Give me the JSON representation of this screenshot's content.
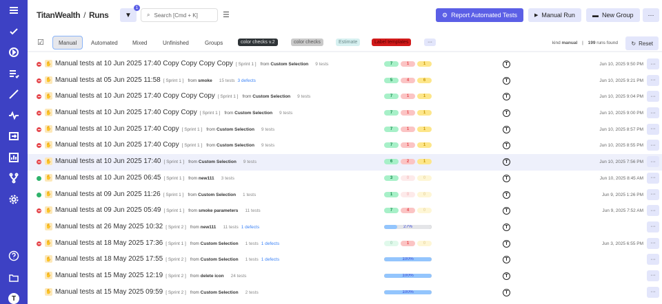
{
  "colors": {
    "sidebar": "#3d41c4",
    "primary": "#5b5fe6",
    "failed": "#e5484d",
    "passed": "#2fb36b",
    "skipped": "#fde68a"
  },
  "sidebar": {
    "items": [
      "menu-icon",
      "check-icon",
      "play-icon",
      "list-icon",
      "trend-icon",
      "pulse-icon",
      "import-icon",
      "chart-icon",
      "branch-icon",
      "gear-icon"
    ],
    "bottom": [
      "help-icon",
      "folder-icon",
      "avatar"
    ],
    "avatar": "T"
  },
  "header": {
    "project": "TitanWealth",
    "separator": "/",
    "page": "Runs",
    "filter_count": "1",
    "search_placeholder": "Search [Cmd + K]",
    "report_button": "Report Automated Tests",
    "manual_run_button": "Manual Run",
    "new_group_button": "New Group",
    "more": "···"
  },
  "tabs": [
    {
      "label": "Manual",
      "active": true
    },
    {
      "label": "Automated"
    },
    {
      "label": "Mixed"
    },
    {
      "label": "Unfinished"
    },
    {
      "label": "Groups"
    }
  ],
  "labels": [
    {
      "text": "color checks v.2",
      "bg": "#2f3437",
      "fg": "#e5e5e5"
    },
    {
      "text": "color checks",
      "bg": "#c9c9c9",
      "fg": "#555"
    },
    {
      "text": "Estimate",
      "bg": "#d6f0f0",
      "fg": "#6b8a8a"
    },
    {
      "text": "Label templates",
      "bg": "#d11a1a",
      "fg": "#5a0000"
    }
  ],
  "labels_more": "···",
  "filter_summary": {
    "kind_label": "kind",
    "kind_value": "manual",
    "separator": "|",
    "count": "199",
    "count_label": "runs found",
    "reset": "Reset"
  },
  "runs": [
    {
      "status": "fail",
      "title": "Manual tests at 10 Jun 2025 17:40 Copy Copy Copy Copy",
      "sprint": "[ Sprint 1 ]",
      "from": "Custom Selection",
      "tests": "9 tests",
      "defects": "",
      "passed": "7",
      "failed": "1",
      "skipped": "1",
      "date": "Jun 10, 2025 9:50 PM"
    },
    {
      "status": "fail",
      "title": "Manual tests at 05 Jun 2025 11:58",
      "sprint": "[ Sprint 1 ]",
      "from": "smoke",
      "tests": "15 tests",
      "defects": "3 defects",
      "passed": "5",
      "failed": "4",
      "skipped": "6",
      "date": "Jun 10, 2025 9:21 PM"
    },
    {
      "status": "fail",
      "title": "Manual tests at 10 Jun 2025 17:40 Copy Copy Copy",
      "sprint": "[ Sprint 1 ]",
      "from": "Custom Selection",
      "tests": "9 tests",
      "defects": "",
      "passed": "7",
      "failed": "1",
      "skipped": "1",
      "date": "Jun 10, 2025 9:04 PM"
    },
    {
      "status": "fail",
      "title": "Manual tests at 10 Jun 2025 17:40 Copy Copy",
      "sprint": "[ Sprint 1 ]",
      "from": "Custom Selection",
      "tests": "9 tests",
      "defects": "",
      "passed": "7",
      "failed": "1",
      "skipped": "1",
      "date": "Jun 10, 2025 9:00 PM"
    },
    {
      "status": "fail",
      "title": "Manual tests at 10 Jun 2025 17:40 Copy",
      "sprint": "[ Sprint 1 ]",
      "from": "Custom Selection",
      "tests": "9 tests",
      "defects": "",
      "passed": "7",
      "failed": "1",
      "skipped": "1",
      "date": "Jun 10, 2025 8:57 PM"
    },
    {
      "status": "fail",
      "title": "Manual tests at 10 Jun 2025 17:40 Copy",
      "sprint": "[ Sprint 1 ]",
      "from": "Custom Selection",
      "tests": "9 tests",
      "defects": "",
      "passed": "7",
      "failed": "1",
      "skipped": "1",
      "date": "Jun 10, 2025 8:55 PM"
    },
    {
      "status": "fail",
      "title": "Manual tests at 10 Jun 2025 17:40",
      "sprint": "[ Sprint 1 ]",
      "from": "Custom Selection",
      "tests": "9 tests",
      "defects": "",
      "passed": "6",
      "failed": "2",
      "skipped": "1",
      "date": "Jun 10, 2025 7:56 PM",
      "highlight": true
    },
    {
      "status": "pass",
      "title": "Manual tests at 10 Jun 2025 06:45",
      "sprint": "[ Sprint 1 ]",
      "from": "new111",
      "tests": "3 tests",
      "defects": "",
      "passed": "3",
      "failed": "0",
      "skipped": "0",
      "date": "Jun 10, 2025 8:45 AM"
    },
    {
      "status": "pass",
      "title": "Manual tests at 09 Jun 2025 11:26",
      "sprint": "[ Sprint 1 ]",
      "from": "Custom Selection",
      "tests": "1 tests",
      "defects": "",
      "passed": "1",
      "failed": "0",
      "skipped": "0",
      "date": "Jun 9, 2025 1:26 PM"
    },
    {
      "status": "fail",
      "title": "Manual tests at 09 Jun 2025 05:49",
      "sprint": "[ Sprint 1 ]",
      "from": "smoke parameters",
      "tests": "11 tests",
      "defects": "",
      "passed": "7",
      "failed": "4",
      "skipped": "0",
      "date": "Jun 9, 2025 7:52 AM"
    },
    {
      "status": "prog",
      "title": "Manual tests at 26 May 2025 10:32",
      "sprint": "[ Sprint 2 ]",
      "from": "new111",
      "tests": "11 tests",
      "defects": "1 defects",
      "progress": 27,
      "progress_label": "27%",
      "date": ""
    },
    {
      "status": "fail",
      "title": "Manual tests at 18 May 2025 17:36",
      "sprint": "[ Sprint 1 ]",
      "from": "Custom Selection",
      "tests": "1 tests",
      "defects": "1 defects",
      "passed": "0",
      "failed": "1",
      "skipped": "0",
      "date": "Jun 3, 2025 6:55 PM"
    },
    {
      "status": "prog",
      "title": "Manual tests at 18 May 2025 17:55",
      "sprint": "[ Sprint 2 ]",
      "from": "Custom Selection",
      "tests": "1 tests",
      "defects": "1 defects",
      "progress": 100,
      "progress_label": "100%",
      "date": ""
    },
    {
      "status": "prog",
      "title": "Manual tests at 15 May 2025 12:19",
      "sprint": "[ Sprint 2 ]",
      "from": "delete icon",
      "tests": "24 tests",
      "defects": "",
      "progress": 100,
      "progress_label": "100%",
      "date": ""
    },
    {
      "status": "prog",
      "title": "Manual tests at 15 May 2025 09:59",
      "sprint": "[ Sprint 2 ]",
      "from": "Custom Selection",
      "tests": "2 tests",
      "defects": "",
      "progress": 100,
      "progress_label": "100%",
      "date": ""
    }
  ],
  "row_text": {
    "from": "from",
    "author_logo": "T",
    "more": "···"
  }
}
